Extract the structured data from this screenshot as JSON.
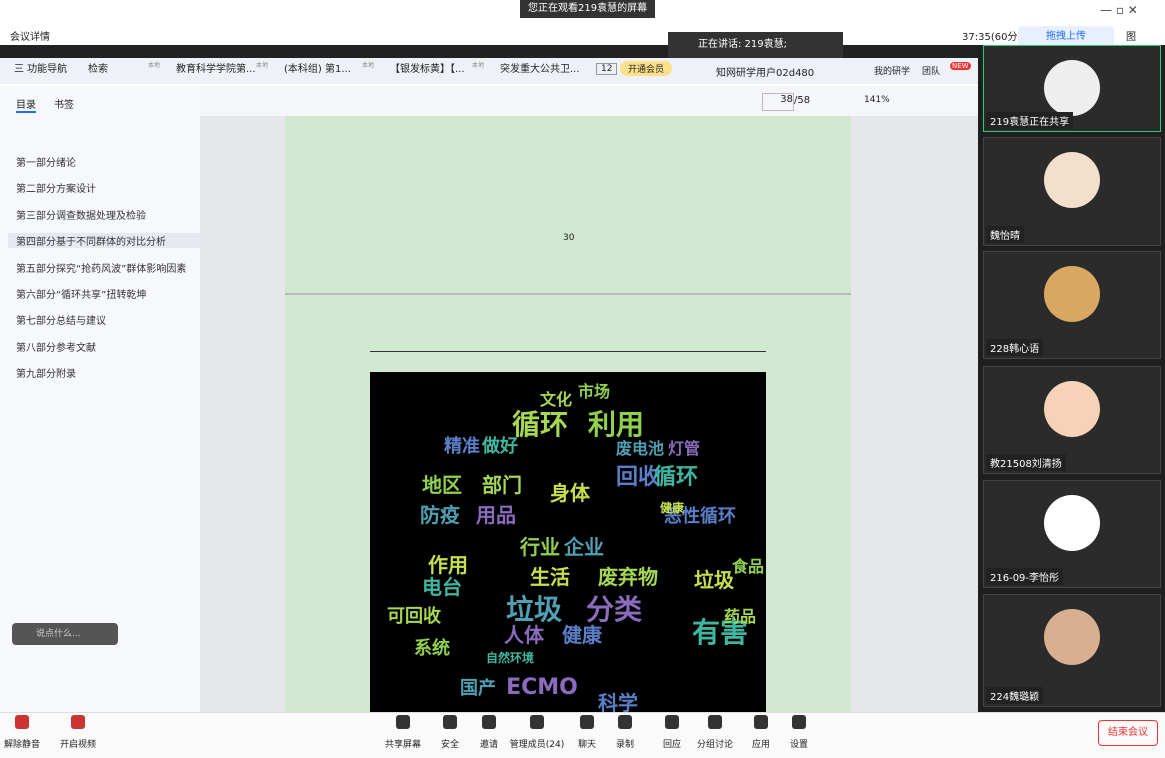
{
  "banner": "您正在观看219袁慧的屏幕",
  "meeting": {
    "details": "会议详情",
    "timer": "37:35(60分",
    "upload": "拖拽上传",
    "view": "图",
    "speaking": "正在讲话: 219袁慧;"
  },
  "browser": {
    "nav": "三 功能导航",
    "search": "检索",
    "tabs": [
      "教育科学学院第...",
      "(本科组) 第1...",
      "【银发标黄】【...",
      "突发重大公共卫..."
    ],
    "tab_badge": "本地",
    "tab_count": "12",
    "vip": "开通会员",
    "user": "知网研学用户02d480",
    "my": "我的研学",
    "team": "团队",
    "new": "NEW"
  },
  "sidebar": {
    "tabs": [
      "目录",
      "书签"
    ],
    "items": [
      "第一部分绪论",
      "第二部分方案设计",
      "第三部分调查数据处理及检验",
      "第四部分基于不同群体的对比分析",
      "第五部分探究“抢药风波”群体影响因素",
      "第六部分“循环共享”扭转乾坤",
      "第七部分总结与建议",
      "第八部分参考文献",
      "第九部分附录"
    ],
    "chat": "说点什么..."
  },
  "toolbar": {
    "page": "38",
    "total": "/58",
    "zoom": "141%"
  },
  "document": {
    "page_number": "30",
    "cloud": [
      "循环",
      "利用",
      "垃圾",
      "分类",
      "回收",
      "循环",
      "身体",
      "部门",
      "地区",
      "防疫",
      "用品",
      "精准",
      "做好",
      "生活",
      "废弃物",
      "行业",
      "企业",
      "人体",
      "健康",
      "电台",
      "作用",
      "可回收",
      "系统",
      "国产",
      "ECMO",
      "科学",
      "有害",
      "垃圾",
      "文化",
      "市场",
      "废电池",
      "灯管",
      "恶性循环",
      "自然环境",
      "健康",
      "药品",
      "食品"
    ]
  },
  "participants": [
    "219袁慧正在共享",
    "魏怡晴",
    "228韩心语",
    "教21508刘清扬",
    "216-09-李怡彤",
    "224魏璐颖"
  ],
  "bottom": {
    "left": [
      "解除静音",
      "开启视频"
    ],
    "center": [
      "共享屏幕",
      "安全",
      "邀请",
      "管理成员(24)",
      "聊天",
      "录制",
      "回应",
      "分组讨论",
      "应用",
      "设置"
    ],
    "end": "结束会议"
  }
}
